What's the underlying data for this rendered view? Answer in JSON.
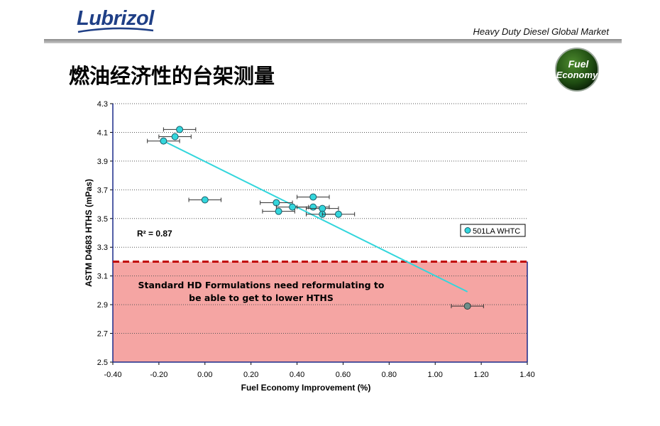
{
  "header": {
    "brand": "Lubrizol",
    "subtitle": "Heavy Duty Diesel Global Market"
  },
  "page_title": "燃油经济性的台架测量",
  "badge": {
    "line1": "Fuel",
    "line2": "Economy"
  },
  "colors": {
    "series": "#33d6dc",
    "trend": "#33d6dc",
    "region_fill": "#f5a5a3",
    "threshold": "#c00000",
    "brand": "#1f3f86"
  },
  "chart_data": {
    "type": "scatter",
    "xlabel": "Fuel Economy Improvement (%)",
    "ylabel": "ASTM D4683 HTHS (mPas)",
    "xlim": [
      -0.4,
      1.4
    ],
    "ylim": [
      2.5,
      4.3
    ],
    "x_ticks": [
      "-0.40",
      "-0.20",
      "0.00",
      "0.20",
      "0.40",
      "0.60",
      "0.80",
      "1.00",
      "1.20",
      "1.40"
    ],
    "y_ticks": [
      "2.5",
      "2.7",
      "2.9",
      "3.1",
      "3.3",
      "3.5",
      "3.7",
      "3.9",
      "4.1",
      "4.3"
    ],
    "grid": "horizontal-dotted",
    "legend": {
      "position": "right",
      "label": "501LA WHTC"
    },
    "series": [
      {
        "name": "501LA WHTC",
        "points": [
          {
            "x": -0.11,
            "y": 4.12,
            "xerr": 0.07
          },
          {
            "x": -0.13,
            "y": 4.07,
            "xerr": 0.07
          },
          {
            "x": -0.18,
            "y": 4.04,
            "xerr": 0.07
          },
          {
            "x": 0.0,
            "y": 3.63,
            "xerr": 0.07
          },
          {
            "x": 0.31,
            "y": 3.61,
            "xerr": 0.07
          },
          {
            "x": 0.38,
            "y": 3.58,
            "xerr": 0.07
          },
          {
            "x": 0.32,
            "y": 3.55,
            "xerr": 0.07
          },
          {
            "x": 0.47,
            "y": 3.65,
            "xerr": 0.07
          },
          {
            "x": 0.47,
            "y": 3.58,
            "xerr": 0.07
          },
          {
            "x": 0.51,
            "y": 3.57,
            "xerr": 0.07
          },
          {
            "x": 0.51,
            "y": 3.53,
            "xerr": 0.07
          },
          {
            "x": 0.58,
            "y": 3.53,
            "xerr": 0.07
          }
        ]
      }
    ],
    "extra_point": {
      "x": 1.14,
      "y": 2.89,
      "xerr": 0.07
    },
    "trendline": {
      "x1": -0.18,
      "y1": 4.04,
      "x2": 1.14,
      "y2": 2.99
    },
    "r_squared": "R² = 0.87",
    "threshold_y": 3.2,
    "region_annotation": [
      "Standard HD Formulations need reformulating to",
      "be able to get to lower HTHS"
    ]
  }
}
